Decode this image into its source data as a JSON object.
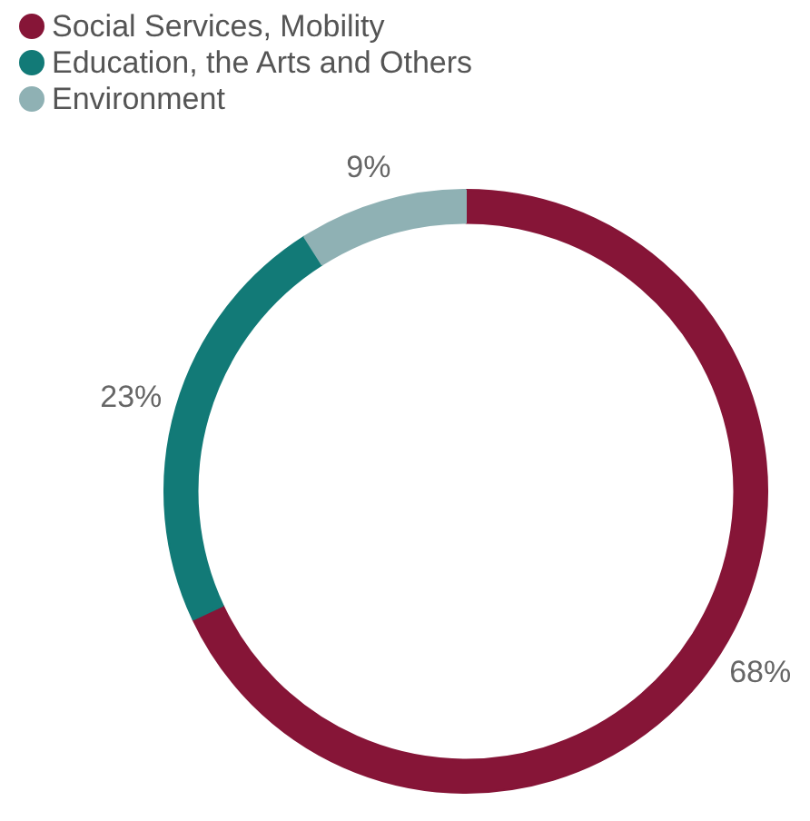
{
  "chart_data": {
    "type": "donut",
    "categories": [
      "Social Services, Mobility",
      "Education, the Arts and Others",
      "Environment"
    ],
    "values": [
      68,
      23,
      9
    ],
    "colors": [
      "#861537",
      "#127a77",
      "#8fb1b4"
    ],
    "value_labels": [
      "68%",
      "23%",
      "9%"
    ],
    "legend": "top left"
  }
}
